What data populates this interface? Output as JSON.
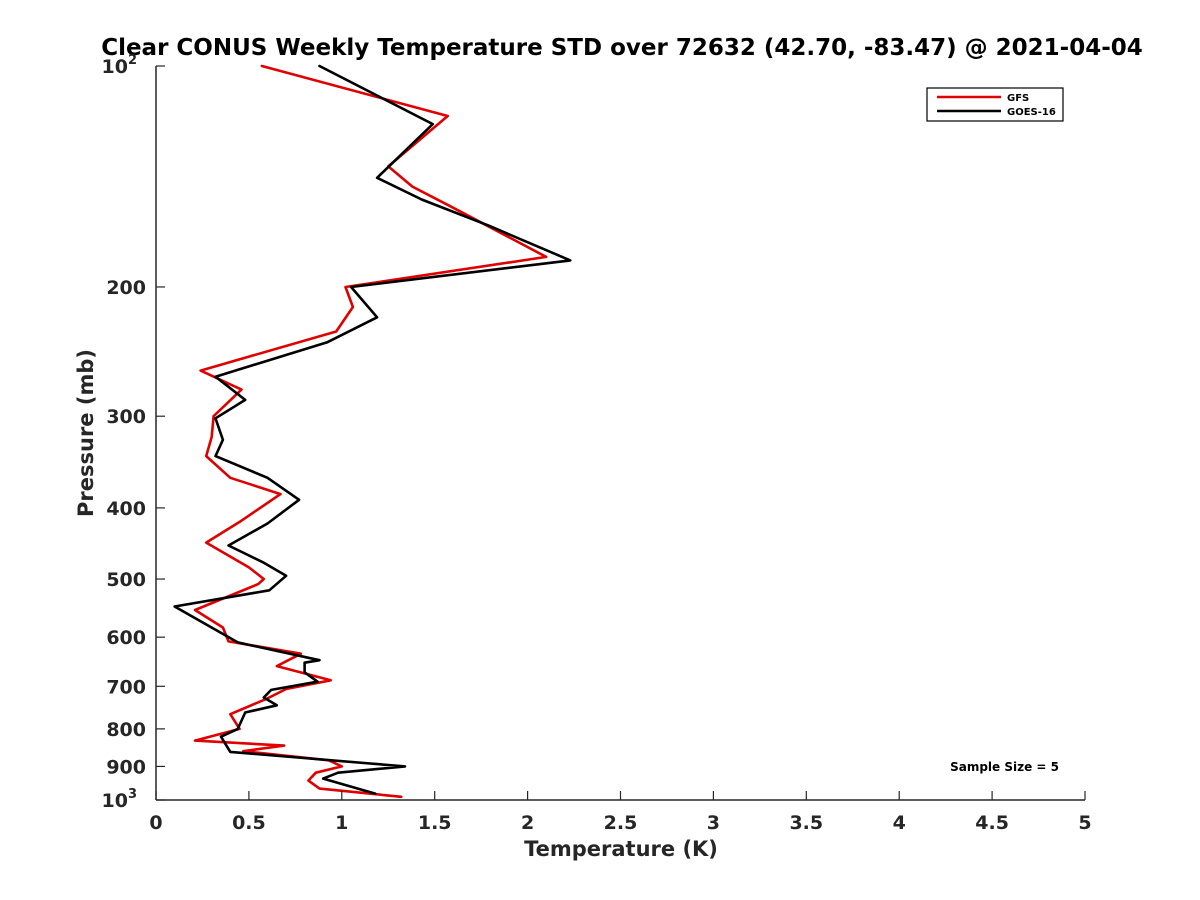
{
  "chart_data": {
    "type": "line",
    "title": "Clear CONUS Weekly Temperature STD over 72632 (42.70, -83.47) @ 2021-04-04",
    "xlabel": "Temperature (K)",
    "ylabel": "Pressure (mb)",
    "xlim": [
      0,
      5
    ],
    "ylim": [
      100,
      1000
    ],
    "y_scale": "log",
    "y_reversed": true,
    "grid": false,
    "legend_position": "top-right",
    "x_ticks": [
      "0",
      "0.5",
      "1",
      "1.5",
      "2",
      "2.5",
      "3",
      "3.5",
      "4",
      "4.5",
      "5"
    ],
    "y_ticks": [
      {
        "value": 100,
        "base": "10",
        "exp": "2"
      },
      {
        "value": 200,
        "label": "200"
      },
      {
        "value": 300,
        "label": "300"
      },
      {
        "value": 400,
        "label": "400"
      },
      {
        "value": 500,
        "label": "500"
      },
      {
        "value": 600,
        "label": "600"
      },
      {
        "value": 700,
        "label": "700"
      },
      {
        "value": 800,
        "label": "800"
      },
      {
        "value": 900,
        "label": "900"
      },
      {
        "value": 1000,
        "base": "10",
        "exp": "3"
      }
    ],
    "annotation": "Sample Size = 5",
    "series": [
      {
        "name": "GFS",
        "color": "#e00000",
        "points": [
          [
            0.57,
            100
          ],
          [
            1.57,
            117
          ],
          [
            1.25,
            137
          ],
          [
            1.38,
            146
          ],
          [
            1.6,
            156
          ],
          [
            2.1,
            182
          ],
          [
            1.02,
            200
          ],
          [
            1.06,
            213
          ],
          [
            0.97,
            230
          ],
          [
            0.24,
            260
          ],
          [
            0.46,
            276
          ],
          [
            0.31,
            300
          ],
          [
            0.3,
            320
          ],
          [
            0.27,
            340
          ],
          [
            0.4,
            364
          ],
          [
            0.67,
            383
          ],
          [
            0.45,
            418
          ],
          [
            0.27,
            446
          ],
          [
            0.5,
            482
          ],
          [
            0.58,
            500
          ],
          [
            0.55,
            508
          ],
          [
            0.21,
            551
          ],
          [
            0.36,
            582
          ],
          [
            0.39,
            608
          ],
          [
            0.78,
            632
          ],
          [
            0.65,
            657
          ],
          [
            0.94,
            687
          ],
          [
            0.7,
            706
          ],
          [
            0.6,
            727
          ],
          [
            0.4,
            764
          ],
          [
            0.45,
            800
          ],
          [
            0.21,
            830
          ],
          [
            0.69,
            843
          ],
          [
            0.47,
            858
          ],
          [
            0.93,
            883
          ],
          [
            1.0,
            900
          ],
          [
            0.86,
            918
          ],
          [
            0.82,
            941
          ],
          [
            0.88,
            965
          ],
          [
            1.32,
            990
          ]
        ]
      },
      {
        "name": "GOES-16",
        "color": "#000000",
        "points": [
          [
            0.88,
            100
          ],
          [
            1.49,
            120
          ],
          [
            1.19,
            142
          ],
          [
            1.43,
            152
          ],
          [
            1.79,
            165
          ],
          [
            2.23,
            184
          ],
          [
            1.05,
            200
          ],
          [
            1.19,
            220
          ],
          [
            0.92,
            238
          ],
          [
            0.32,
            265
          ],
          [
            0.48,
            285
          ],
          [
            0.32,
            302
          ],
          [
            0.36,
            323
          ],
          [
            0.32,
            340
          ],
          [
            0.6,
            364
          ],
          [
            0.77,
            390
          ],
          [
            0.6,
            420
          ],
          [
            0.39,
            450
          ],
          [
            0.58,
            475
          ],
          [
            0.7,
            495
          ],
          [
            0.61,
            518
          ],
          [
            0.1,
            545
          ],
          [
            0.44,
            610
          ],
          [
            0.88,
            645
          ],
          [
            0.8,
            650
          ],
          [
            0.8,
            670
          ],
          [
            0.87,
            690
          ],
          [
            0.62,
            708
          ],
          [
            0.58,
            725
          ],
          [
            0.65,
            743
          ],
          [
            0.48,
            760
          ],
          [
            0.44,
            800
          ],
          [
            0.35,
            820
          ],
          [
            0.4,
            860
          ],
          [
            1.34,
            900
          ],
          [
            0.98,
            918
          ],
          [
            0.9,
            935
          ],
          [
            1.18,
            980
          ]
        ]
      }
    ]
  }
}
